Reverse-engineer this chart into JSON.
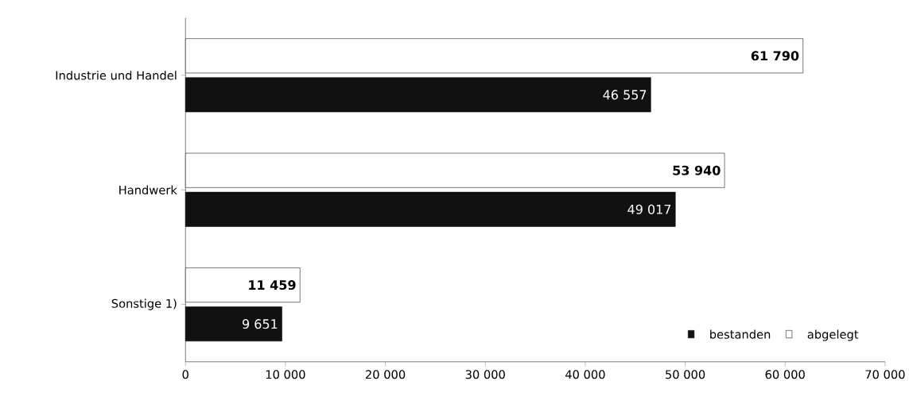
{
  "chart_data": {
    "type": "bar",
    "orientation": "horizontal",
    "categories": [
      "Industrie und Handel",
      "Handwerk",
      "Sonstige 1)"
    ],
    "series": [
      {
        "name": "bestanden",
        "color": "#111111",
        "values": [
          46557,
          49017,
          9651
        ],
        "value_labels": [
          "46 557",
          "49 017",
          "9 651"
        ]
      },
      {
        "name": "abgelegt",
        "color": "#ffffff",
        "values": [
          61790,
          53940,
          11459
        ],
        "value_labels": [
          "61 790",
          "53 940",
          "11 459"
        ]
      }
    ],
    "xlim": [
      0,
      70000
    ],
    "xticks": [
      0,
      {
        "value": 10000,
        "label": "10 000"
      },
      {
        "value": 20000,
        "label": "20 000"
      },
      {
        "value": 30000,
        "label": "30 000"
      },
      {
        "value": 40000,
        "label": "40 000"
      },
      {
        "value": 50000,
        "label": "50 000"
      },
      {
        "value": 60000,
        "label": "60 000"
      },
      {
        "value": 70000,
        "label": "70 000"
      }
    ],
    "grid": false,
    "legend": "bottom right"
  }
}
